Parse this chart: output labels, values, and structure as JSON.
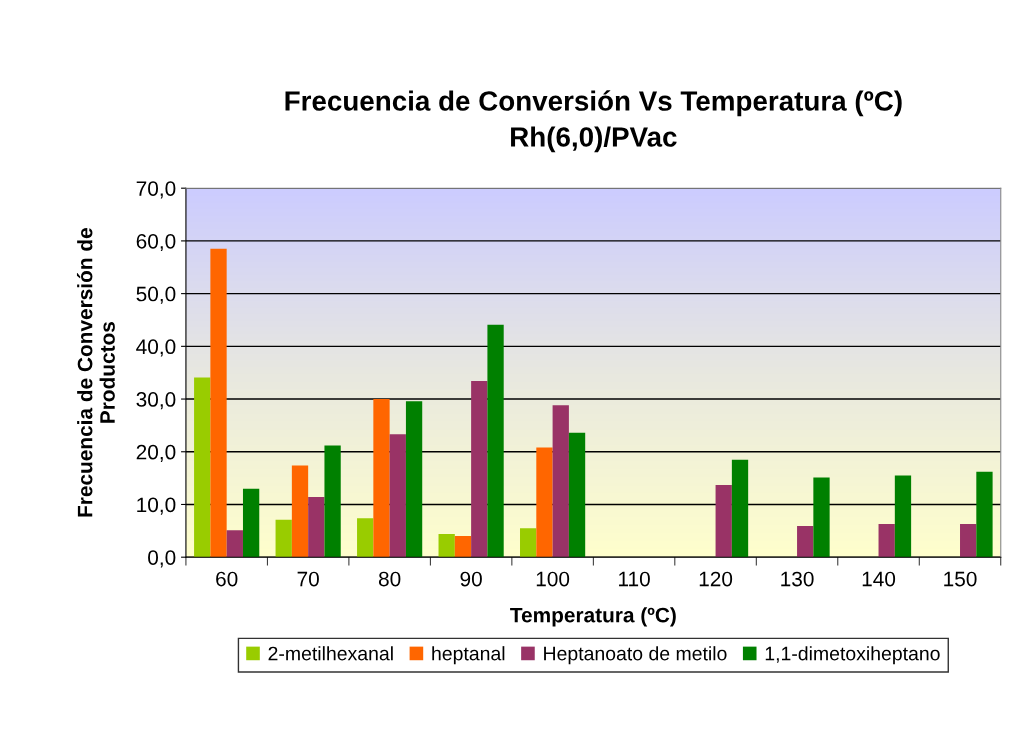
{
  "chart_data": {
    "type": "bar",
    "title": "Frecuencia de Conversión Vs Temperatura (ºC)\nRh(6,0)/PVac",
    "xlabel": "Temperatura (ºC)",
    "ylabel": "Frecuencia de Conversión de\nProductos",
    "categories": [
      "60",
      "70",
      "80",
      "90",
      "100",
      "110",
      "120",
      "130",
      "140",
      "150"
    ],
    "series": [
      {
        "name": "2-metilhexanal",
        "color": "#99cc00",
        "values": [
          34.1,
          7.1,
          7.4,
          4.4,
          5.5,
          null,
          null,
          null,
          null,
          null
        ]
      },
      {
        "name": "heptanal",
        "color": "#ff6600",
        "values": [
          58.5,
          17.4,
          30.0,
          4.0,
          20.8,
          null,
          null,
          null,
          null,
          null
        ]
      },
      {
        "name": "Heptanoato de metilo",
        "color": "#993366",
        "values": [
          5.1,
          11.4,
          23.3,
          33.4,
          28.8,
          null,
          13.7,
          5.9,
          6.3,
          6.3
        ]
      },
      {
        "name": "1,1-dimetoxiheptano",
        "color": "#008000",
        "values": [
          13.0,
          21.2,
          29.6,
          44.1,
          23.6,
          null,
          18.5,
          15.1,
          15.5,
          16.2
        ]
      }
    ],
    "ylim": [
      0,
      70
    ],
    "yticks": [
      {
        "value": 0,
        "label": "0,0"
      },
      {
        "value": 10,
        "label": "10,0"
      },
      {
        "value": 20,
        "label": "20,0"
      },
      {
        "value": 30,
        "label": "30,0"
      },
      {
        "value": 40,
        "label": "40,0"
      },
      {
        "value": 50,
        "label": "50,0"
      },
      {
        "value": 60,
        "label": "60,0"
      },
      {
        "value": 70,
        "label": "70,0"
      }
    ],
    "grid": "y",
    "legend": "bottom"
  }
}
